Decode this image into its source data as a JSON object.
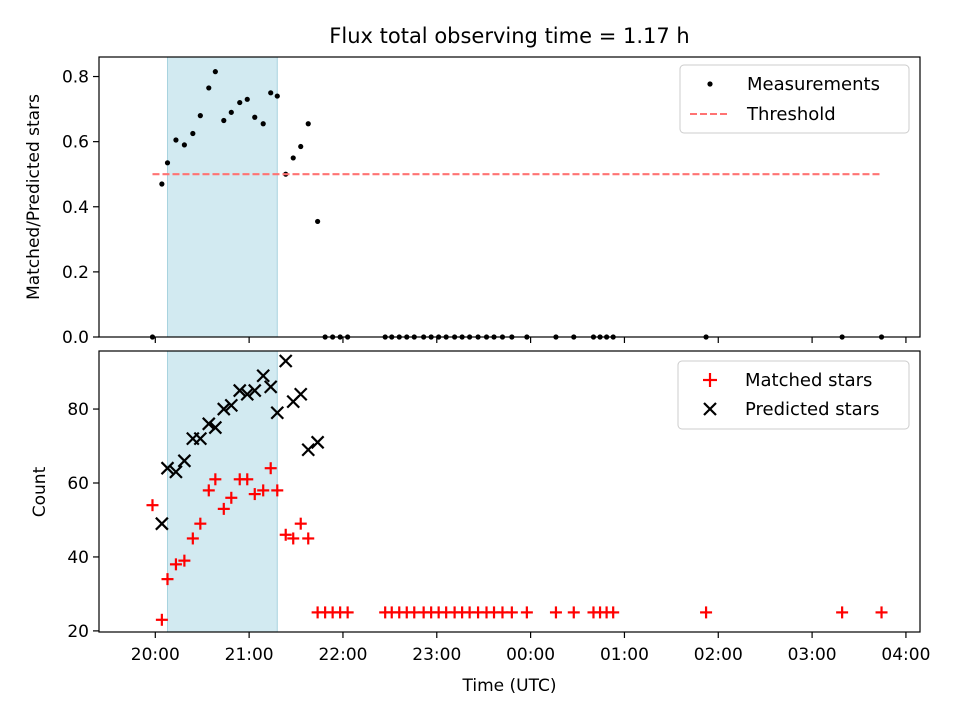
{
  "chart_data": [
    {
      "type": "scatter",
      "title": "Flux total observing time = 1.17 h",
      "xlabel": "",
      "ylabel": "Matched/Predicted stars",
      "x_unit": "hours after 00:00 UTC on first night (values above 24 are after midnight)",
      "xlim": [
        19.4,
        28.15
      ],
      "ylim": [
        0.0,
        0.86
      ],
      "yticks": [
        "0.0",
        "0.2",
        "0.4",
        "0.6",
        "0.8"
      ],
      "yticks_values": [
        0.0,
        0.2,
        0.4,
        0.6,
        0.8
      ],
      "highlight_span": {
        "x_start": 20.13,
        "x_end": 21.3,
        "color": "#add8e6"
      },
      "legend_position": "top-right",
      "legend": [
        "Measurements",
        "Threshold"
      ],
      "series": [
        {
          "name": "Measurements",
          "kind": "points",
          "color": "#000000",
          "points": [
            [
              19.97,
              0.0
            ],
            [
              20.07,
              0.47
            ],
            [
              20.13,
              0.535
            ],
            [
              20.22,
              0.605
            ],
            [
              20.31,
              0.59
            ],
            [
              20.4,
              0.625
            ],
            [
              20.48,
              0.68
            ],
            [
              20.57,
              0.765
            ],
            [
              20.64,
              0.815
            ],
            [
              20.73,
              0.665
            ],
            [
              20.81,
              0.69
            ],
            [
              20.9,
              0.72
            ],
            [
              20.98,
              0.73
            ],
            [
              21.06,
              0.675
            ],
            [
              21.15,
              0.655
            ],
            [
              21.23,
              0.75
            ],
            [
              21.3,
              0.74
            ],
            [
              21.39,
              0.5
            ],
            [
              21.47,
              0.55
            ],
            [
              21.55,
              0.585
            ],
            [
              21.63,
              0.655
            ],
            [
              21.73,
              0.355
            ],
            [
              21.81,
              0.0
            ],
            [
              21.89,
              0.0
            ],
            [
              21.97,
              0.0
            ],
            [
              22.05,
              0.0
            ],
            [
              22.45,
              0.0
            ],
            [
              22.52,
              0.0
            ],
            [
              22.6,
              0.0
            ],
            [
              22.68,
              0.0
            ],
            [
              22.76,
              0.0
            ],
            [
              22.86,
              0.0
            ],
            [
              22.94,
              0.0
            ],
            [
              23.02,
              0.0
            ],
            [
              23.1,
              0.0
            ],
            [
              23.19,
              0.0
            ],
            [
              23.27,
              0.0
            ],
            [
              23.35,
              0.0
            ],
            [
              23.44,
              0.0
            ],
            [
              23.53,
              0.0
            ],
            [
              23.61,
              0.0
            ],
            [
              23.7,
              0.0
            ],
            [
              23.8,
              0.0
            ],
            [
              23.96,
              0.0
            ],
            [
              24.27,
              0.0
            ],
            [
              24.46,
              0.0
            ],
            [
              24.67,
              0.0
            ],
            [
              24.74,
              0.0
            ],
            [
              24.81,
              0.0
            ],
            [
              24.88,
              0.0
            ],
            [
              25.87,
              0.0
            ],
            [
              27.32,
              0.0
            ],
            [
              27.74,
              0.0
            ]
          ]
        },
        {
          "name": "Threshold",
          "kind": "dashed-line",
          "color": "#ff7373",
          "points": [
            [
              19.97,
              0.5
            ],
            [
              27.74,
              0.5
            ]
          ]
        }
      ]
    },
    {
      "type": "scatter",
      "title": "",
      "xlabel": "Time (UTC)",
      "ylabel": "Count",
      "x_unit": "hours after 00:00 UTC on first night (values above 24 are after midnight)",
      "xlim": [
        19.4,
        28.15
      ],
      "ylim": [
        19.7,
        95.7
      ],
      "yticks": [
        "20",
        "40",
        "60",
        "80"
      ],
      "yticks_values": [
        20,
        40,
        60,
        80
      ],
      "xticks": [
        "20:00",
        "21:00",
        "22:00",
        "23:00",
        "00:00",
        "01:00",
        "02:00",
        "03:00",
        "04:00"
      ],
      "xticks_values": [
        20,
        21,
        22,
        23,
        24,
        25,
        26,
        27,
        28
      ],
      "highlight_span": {
        "x_start": 20.13,
        "x_end": 21.3,
        "color": "#add8e6"
      },
      "legend_position": "top-right",
      "legend": [
        "Matched stars",
        "Predicted stars"
      ],
      "series": [
        {
          "name": "Matched stars",
          "kind": "plus",
          "color": "#ff0000",
          "points": [
            [
              19.97,
              54
            ],
            [
              20.07,
              23
            ],
            [
              20.13,
              34
            ],
            [
              20.22,
              38
            ],
            [
              20.31,
              39
            ],
            [
              20.4,
              45
            ],
            [
              20.48,
              49
            ],
            [
              20.57,
              58
            ],
            [
              20.64,
              61
            ],
            [
              20.73,
              53
            ],
            [
              20.81,
              56
            ],
            [
              20.9,
              61
            ],
            [
              20.98,
              61
            ],
            [
              21.06,
              57
            ],
            [
              21.15,
              58
            ],
            [
              21.23,
              64
            ],
            [
              21.3,
              58
            ],
            [
              21.39,
              46
            ],
            [
              21.47,
              45
            ],
            [
              21.55,
              49
            ],
            [
              21.63,
              45
            ],
            [
              21.73,
              25
            ],
            [
              21.81,
              25
            ],
            [
              21.89,
              25
            ],
            [
              21.97,
              25
            ],
            [
              22.05,
              25
            ],
            [
              22.45,
              25
            ],
            [
              22.52,
              25
            ],
            [
              22.6,
              25
            ],
            [
              22.68,
              25
            ],
            [
              22.76,
              25
            ],
            [
              22.86,
              25
            ],
            [
              22.94,
              25
            ],
            [
              23.02,
              25
            ],
            [
              23.1,
              25
            ],
            [
              23.19,
              25
            ],
            [
              23.27,
              25
            ],
            [
              23.35,
              25
            ],
            [
              23.44,
              25
            ],
            [
              23.53,
              25
            ],
            [
              23.61,
              25
            ],
            [
              23.7,
              25
            ],
            [
              23.8,
              25
            ],
            [
              23.96,
              25
            ],
            [
              24.27,
              25
            ],
            [
              24.46,
              25
            ],
            [
              24.67,
              25
            ],
            [
              24.74,
              25
            ],
            [
              24.81,
              25
            ],
            [
              24.88,
              25
            ],
            [
              25.87,
              25
            ],
            [
              27.32,
              25
            ],
            [
              27.74,
              25
            ]
          ]
        },
        {
          "name": "Predicted stars",
          "kind": "cross",
          "color": "#000000",
          "points": [
            [
              20.07,
              49
            ],
            [
              20.13,
              64
            ],
            [
              20.22,
              63
            ],
            [
              20.31,
              66
            ],
            [
              20.4,
              72
            ],
            [
              20.48,
              72
            ],
            [
              20.57,
              76
            ],
            [
              20.64,
              75
            ],
            [
              20.73,
              80
            ],
            [
              20.81,
              81
            ],
            [
              20.9,
              85
            ],
            [
              20.98,
              84
            ],
            [
              21.06,
              85
            ],
            [
              21.15,
              89
            ],
            [
              21.23,
              86
            ],
            [
              21.3,
              79
            ],
            [
              21.39,
              93
            ],
            [
              21.47,
              82
            ],
            [
              21.55,
              84
            ],
            [
              21.63,
              69
            ],
            [
              21.73,
              71
            ]
          ]
        }
      ]
    }
  ]
}
